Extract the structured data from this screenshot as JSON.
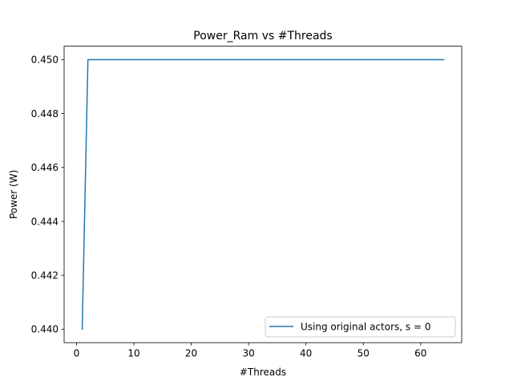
{
  "chart_data": {
    "type": "line",
    "title": "Power_Ram vs #Threads",
    "xlabel": "#Threads",
    "ylabel": "Power (W)",
    "xlim": [
      -2.15,
      67.15
    ],
    "ylim": [
      0.4395,
      0.4505
    ],
    "xticks": [
      0,
      10,
      20,
      30,
      40,
      50,
      60
    ],
    "xtick_labels": [
      "0",
      "10",
      "20",
      "30",
      "40",
      "50",
      "60"
    ],
    "yticks": [
      0.44,
      0.442,
      0.444,
      0.446,
      0.448,
      0.45
    ],
    "ytick_labels": [
      "0.440",
      "0.442",
      "0.444",
      "0.446",
      "0.448",
      "0.450"
    ],
    "grid": false,
    "legend_position": "lower-right",
    "series": [
      {
        "name": "Using original actors, s = 0",
        "color": "#1f77b4",
        "x": [
          1,
          2,
          4,
          8,
          16,
          32,
          64
        ],
        "y": [
          0.44,
          0.45,
          0.45,
          0.45,
          0.45,
          0.45,
          0.45
        ]
      }
    ]
  }
}
